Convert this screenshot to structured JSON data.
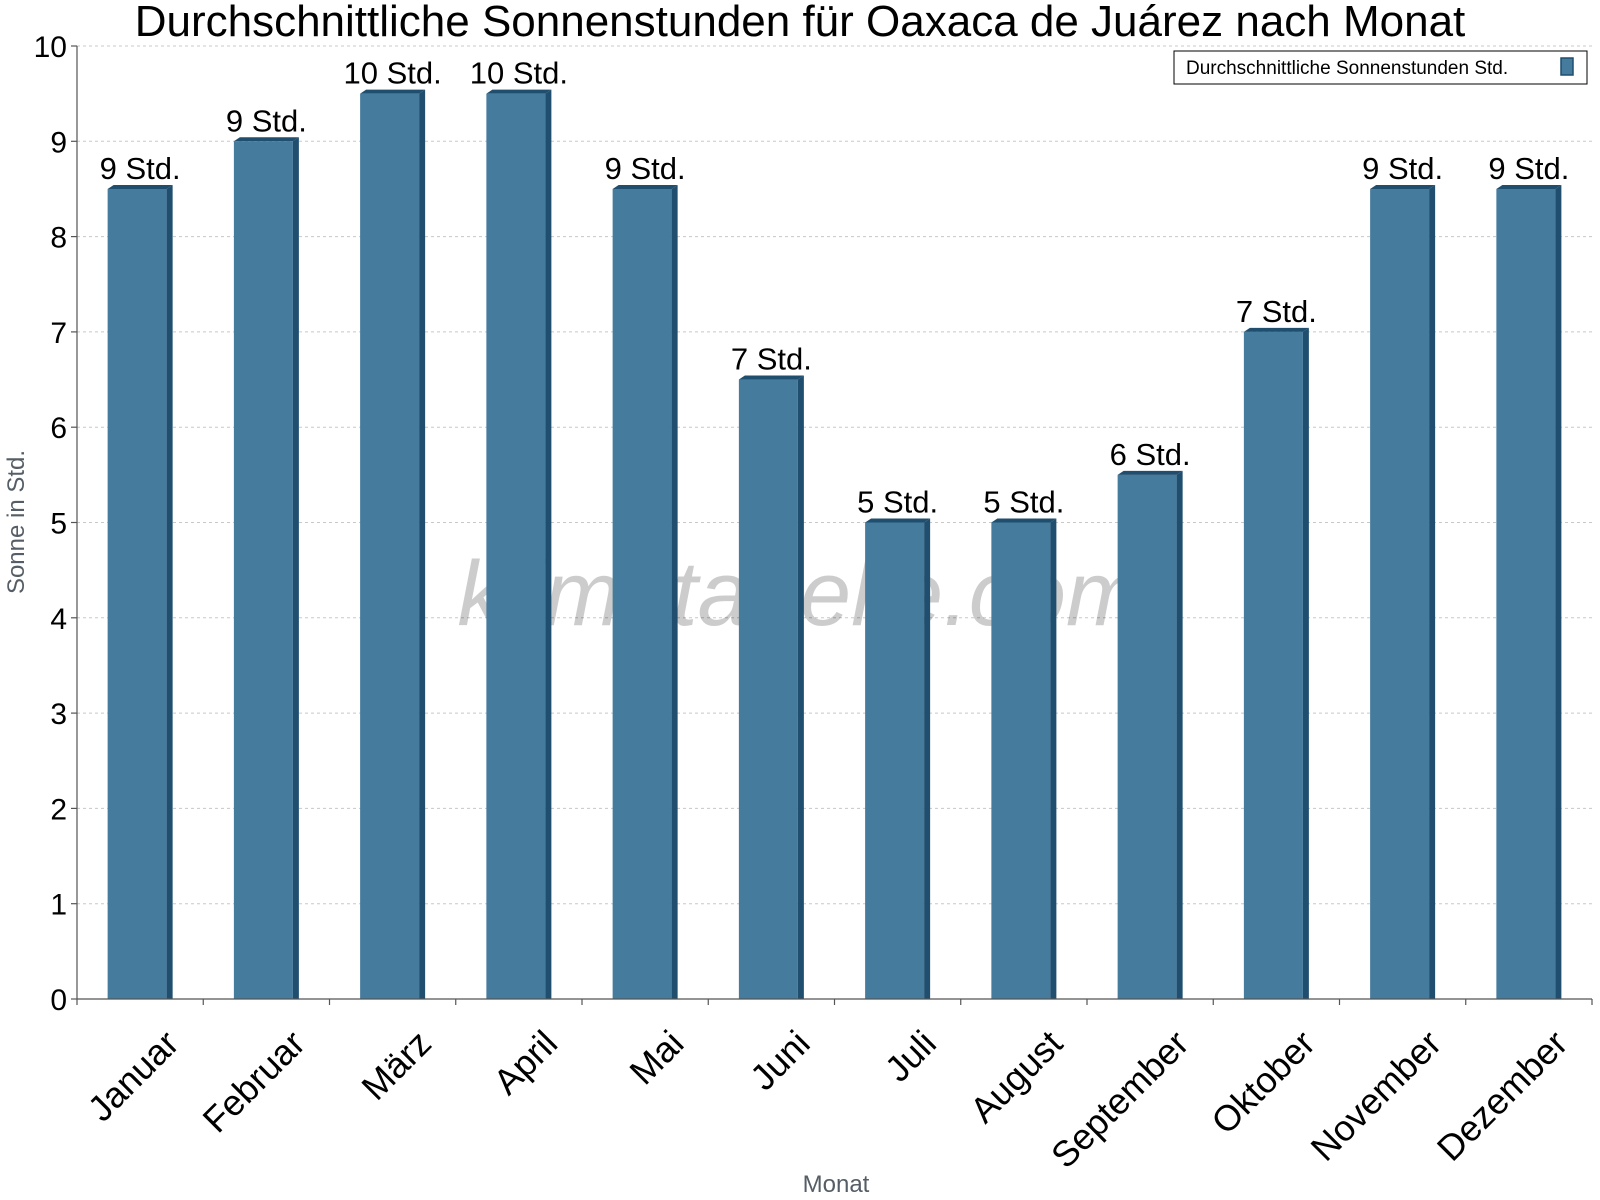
{
  "chart_data": {
    "type": "bar",
    "title": "Durchschnittliche Sonnenstunden für Oaxaca de Juárez nach Monat",
    "xlabel": "Monat",
    "ylabel": "Sonne in Std.",
    "ylim": [
      0,
      10
    ],
    "yticks": [
      "0",
      "1",
      "2",
      "3",
      "4",
      "5",
      "6",
      "7",
      "8",
      "9",
      "10"
    ],
    "grid": true,
    "legend_position": "top-right",
    "categories": [
      "Januar",
      "Februar",
      "März",
      "April",
      "Mai",
      "Juni",
      "Juli",
      "August",
      "September",
      "Oktober",
      "November",
      "Dezember"
    ],
    "series": [
      {
        "name": "Durchschnittliche Sonnenstunden Std.",
        "color": "#457b9d",
        "values": [
          8.5,
          9.0,
          9.5,
          9.5,
          8.5,
          6.5,
          5.0,
          5.0,
          5.5,
          7.0,
          8.5,
          8.5
        ],
        "labels": [
          "9 Std.",
          "9 Std.",
          "10 Std.",
          "10 Std.",
          "9 Std.",
          "7 Std.",
          "5 Std.",
          "5 Std.",
          "6 Std.",
          "7 Std.",
          "9 Std.",
          "9 Std."
        ]
      }
    ]
  },
  "watermark": "klimatabelle.com"
}
